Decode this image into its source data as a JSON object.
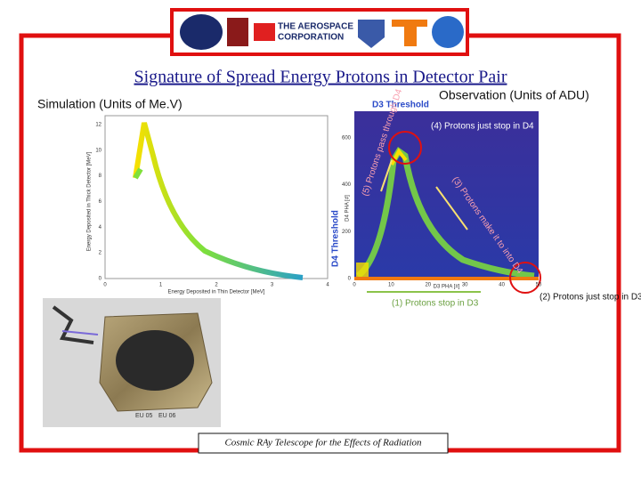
{
  "header": {
    "logo_text": [
      "THE AEROSPACE",
      "CORPORATION"
    ]
  },
  "title": "Signature of Spread Energy Protons in Detector Pair",
  "simulation": {
    "label": "Simulation (Units of Me.V)",
    "y_label": "Energy Deposited in Thick Detector [MeV]",
    "x_label": "Energy Deposited in Thin Detector [MeV]",
    "yticks": [
      0,
      2,
      4,
      6,
      8,
      10,
      12
    ],
    "xticks": [
      0,
      1,
      2,
      3,
      4
    ]
  },
  "observation": {
    "label": "Observation (Units of ADU)",
    "y_label": "D4 PHA [#]",
    "x_label": "D3 PHA [#]",
    "yticks": [
      0,
      200,
      400,
      600
    ],
    "xticks": [
      0,
      10,
      20,
      30,
      40,
      50
    ],
    "annotations": [
      "D3 Threshold",
      "(4) Protons just stop in D4",
      "(5) Protons pass through D4",
      "(3) Protons make it to into D4",
      "D4 Threshold",
      "(1) Protons stop in D3",
      "(2) Protons just stop in D3"
    ]
  },
  "photo_labels": [
    "EU 05",
    "EU 06"
  ],
  "footer": "Cosmic RAy Telescope for the Effects of Radiation"
}
